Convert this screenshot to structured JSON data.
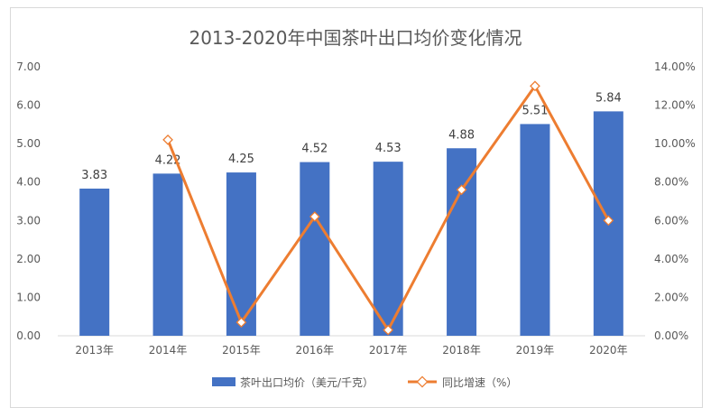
{
  "chart_data": {
    "type": "bar",
    "title": "2013-2020年中国茶叶出口均价变化情况",
    "categories": [
      "2013年",
      "2014年",
      "2015年",
      "2016年",
      "2017年",
      "2018年",
      "2019年",
      "2020年"
    ],
    "series": [
      {
        "name": "茶叶出口均价（美元/千克）",
        "type": "bar",
        "axis": "left",
        "values": [
          3.83,
          4.22,
          4.25,
          4.52,
          4.53,
          4.88,
          5.51,
          5.84
        ],
        "data_labels": [
          "3.83",
          "4.22",
          "4.25",
          "4.52",
          "4.53",
          "4.88",
          "5.51",
          "5.84"
        ],
        "color": "#4472c4"
      },
      {
        "name": "同比增速（%）",
        "type": "line",
        "axis": "right",
        "values": [
          null,
          10.2,
          0.7,
          6.2,
          0.3,
          7.6,
          13.0,
          6.0
        ],
        "color": "#ed7d31"
      }
    ],
    "y_left": {
      "range": [
        0,
        7
      ],
      "ticks": [
        "0.00",
        "1.00",
        "2.00",
        "3.00",
        "4.00",
        "5.00",
        "6.00",
        "7.00"
      ]
    },
    "y_right": {
      "range": [
        0,
        14
      ],
      "ticks": [
        "0.00%",
        "2.00%",
        "4.00%",
        "6.00%",
        "8.00%",
        "10.00%",
        "12.00%",
        "14.00%"
      ]
    },
    "grid": false,
    "legend_position": "bottom"
  }
}
